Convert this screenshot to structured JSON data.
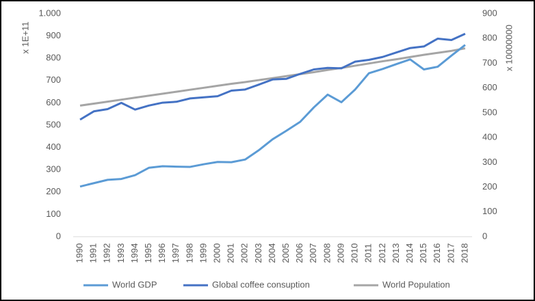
{
  "chart_data": {
    "type": "line",
    "categories": [
      "1990",
      "1991",
      "1992",
      "1993",
      "1994",
      "1995",
      "1996",
      "1997",
      "1998",
      "1999",
      "2000",
      "2001",
      "2002",
      "2003",
      "2004",
      "2005",
      "2006",
      "2007",
      "2008",
      "2009",
      "2010",
      "2011",
      "2012",
      "2013",
      "2014",
      "2015",
      "2016",
      "2017",
      "2018"
    ],
    "series": [
      {
        "name": "World GDP",
        "color": "#5b9bd5",
        "axis": "y",
        "values": [
          225,
          240,
          255,
          259,
          276,
          309,
          316,
          314,
          313,
          325,
          335,
          334,
          346,
          388,
          437,
          475,
          515,
          580,
          637,
          603,
          660,
          733,
          752,
          774,
          795,
          750,
          762,
          812,
          860
        ]
      },
      {
        "name": "Global coffee consuption",
        "color": "#4472c4",
        "axis": "y",
        "values": [
          525,
          562,
          572,
          600,
          570,
          588,
          601,
          605,
          620,
          625,
          630,
          655,
          660,
          682,
          705,
          708,
          730,
          750,
          757,
          755,
          785,
          793,
          806,
          826,
          846,
          853,
          888,
          882,
          910
        ]
      },
      {
        "name": "World Population",
        "color": "#a5a5a5",
        "axis": "y2",
        "values": [
          529,
          537,
          545,
          553,
          561,
          569,
          577,
          585,
          593,
          601,
          609,
          617,
          624,
          632,
          640,
          648,
          656,
          664,
          673,
          681,
          690,
          699,
          708,
          716,
          725,
          734,
          742,
          750,
          760
        ]
      }
    ],
    "ylabel": "x 1E+11",
    "y2label": "x 10000000",
    "ylim": [
      0,
      1000
    ],
    "yticks": [
      0,
      100,
      200,
      300,
      400,
      500,
      600,
      700,
      800,
      900,
      {
        "value": 1000,
        "label": "1.000"
      }
    ],
    "y2lim": [
      0,
      900
    ],
    "y2ticks": [
      0,
      100,
      200,
      300,
      400,
      500,
      600,
      700,
      800,
      900
    ],
    "grid": false,
    "legend": "bottom"
  }
}
